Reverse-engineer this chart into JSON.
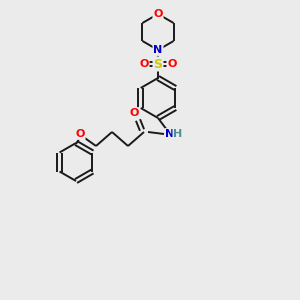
{
  "background_color": "#ebebeb",
  "bond_color": "#1a1a1a",
  "atom_colors": {
    "O": "#ff0000",
    "N": "#0000cc",
    "S": "#cccc00",
    "C": "#1a1a1a",
    "H": "#4a9090"
  },
  "figsize": [
    3.0,
    3.0
  ],
  "dpi": 100
}
